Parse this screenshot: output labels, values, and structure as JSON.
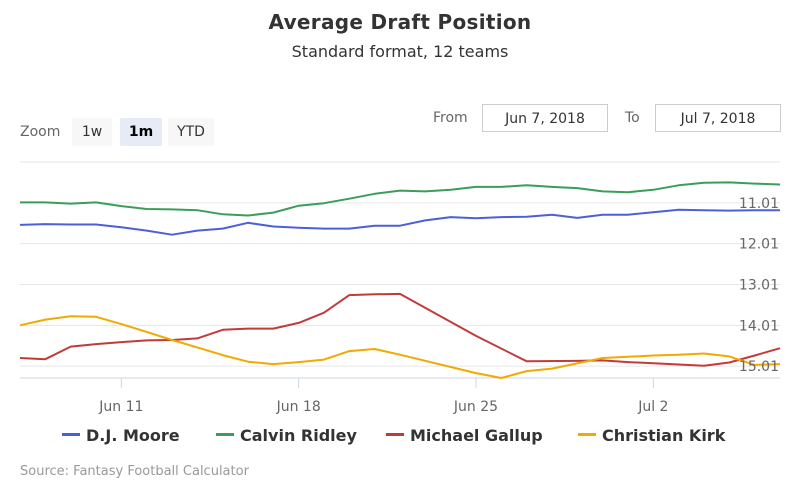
{
  "title": "Average Draft Position",
  "subtitle": "Standard format, 12 teams",
  "zoom": {
    "label": "Zoom",
    "buttons": [
      "1w",
      "1m",
      "YTD"
    ],
    "active": "1m"
  },
  "range": {
    "from_label": "From",
    "from_value": "Jun 7, 2018",
    "to_label": "To",
    "to_value": "Jul 7, 2018"
  },
  "source": "Source: Fantasy Football Calculator",
  "chart_data": {
    "type": "line",
    "x_axis": {
      "type": "date",
      "range": [
        "2018-06-07",
        "2018-07-07"
      ],
      "tick_labels": [
        "Jun 11",
        "Jun 18",
        "Jun 25",
        "Jul 2"
      ]
    },
    "y_axis": {
      "reversed": true,
      "range": [
        10.01,
        15.3
      ],
      "tick_labels": [
        "11.01",
        "12.01",
        "13.01",
        "14.01",
        "15.01"
      ],
      "tick_values": [
        11.01,
        12.01,
        13.01,
        14.01,
        15.01
      ]
    },
    "grid": true,
    "legend_position": "bottom",
    "series": [
      {
        "name": "D.J. Moore",
        "color": "#4c5fdb",
        "points": [
          [
            "2018-06-07",
            11.55
          ],
          [
            "2018-06-08",
            11.53
          ],
          [
            "2018-06-09",
            11.54
          ],
          [
            "2018-06-10",
            11.54
          ],
          [
            "2018-06-11",
            11.61
          ],
          [
            "2018-06-12",
            11.69
          ],
          [
            "2018-06-13",
            11.79
          ],
          [
            "2018-06-14",
            11.69
          ],
          [
            "2018-06-15",
            11.64
          ],
          [
            "2018-06-16",
            11.5
          ],
          [
            "2018-06-17",
            11.59
          ],
          [
            "2018-06-18",
            11.62
          ],
          [
            "2018-06-19",
            11.64
          ],
          [
            "2018-06-20",
            11.64
          ],
          [
            "2018-06-21",
            11.57
          ],
          [
            "2018-06-22",
            11.57
          ],
          [
            "2018-06-23",
            11.44
          ],
          [
            "2018-06-24",
            11.36
          ],
          [
            "2018-06-25",
            11.39
          ],
          [
            "2018-06-26",
            11.36
          ],
          [
            "2018-06-27",
            11.35
          ],
          [
            "2018-06-28",
            11.3
          ],
          [
            "2018-06-29",
            11.38
          ],
          [
            "2018-06-30",
            11.3
          ],
          [
            "2018-07-01",
            11.3
          ],
          [
            "2018-07-02",
            11.24
          ],
          [
            "2018-07-03",
            11.18
          ],
          [
            "2018-07-04",
            11.19
          ],
          [
            "2018-07-05",
            11.2
          ],
          [
            "2018-07-06",
            11.19
          ],
          [
            "2018-07-07",
            11.19
          ]
        ]
      },
      {
        "name": "Calvin Ridley",
        "color": "#3a9e5a",
        "points": [
          [
            "2018-06-07",
            11.0
          ],
          [
            "2018-06-08",
            11.0
          ],
          [
            "2018-06-09",
            11.03
          ],
          [
            "2018-06-10",
            11.0
          ],
          [
            "2018-06-11",
            11.09
          ],
          [
            "2018-06-12",
            11.16
          ],
          [
            "2018-06-13",
            11.17
          ],
          [
            "2018-06-14",
            11.19
          ],
          [
            "2018-06-15",
            11.29
          ],
          [
            "2018-06-16",
            11.32
          ],
          [
            "2018-06-17",
            11.25
          ],
          [
            "2018-06-18",
            11.08
          ],
          [
            "2018-06-19",
            11.02
          ],
          [
            "2018-06-20",
            10.91
          ],
          [
            "2018-06-21",
            10.79
          ],
          [
            "2018-06-22",
            10.71
          ],
          [
            "2018-06-23",
            10.73
          ],
          [
            "2018-06-24",
            10.69
          ],
          [
            "2018-06-25",
            10.62
          ],
          [
            "2018-06-26",
            10.62
          ],
          [
            "2018-06-27",
            10.58
          ],
          [
            "2018-06-28",
            10.62
          ],
          [
            "2018-06-29",
            10.65
          ],
          [
            "2018-06-30",
            10.73
          ],
          [
            "2018-07-01",
            10.75
          ],
          [
            "2018-07-02",
            10.69
          ],
          [
            "2018-07-03",
            10.58
          ],
          [
            "2018-07-04",
            10.52
          ],
          [
            "2018-07-05",
            10.51
          ],
          [
            "2018-07-06",
            10.54
          ],
          [
            "2018-07-07",
            10.56
          ]
        ]
      },
      {
        "name": "Michael Gallup",
        "color": "#c23b3b",
        "points": [
          [
            "2018-06-07",
            14.81
          ],
          [
            "2018-06-08",
            14.84
          ],
          [
            "2018-06-09",
            14.53
          ],
          [
            "2018-06-10",
            14.47
          ],
          [
            "2018-06-11",
            14.42
          ],
          [
            "2018-06-12",
            14.38
          ],
          [
            "2018-06-13",
            14.37
          ],
          [
            "2018-06-14",
            14.33
          ],
          [
            "2018-06-15",
            14.12
          ],
          [
            "2018-06-16",
            14.09
          ],
          [
            "2018-06-17",
            14.09
          ],
          [
            "2018-06-18",
            13.95
          ],
          [
            "2018-06-19",
            13.7
          ],
          [
            "2018-06-20",
            13.27
          ],
          [
            "2018-06-21",
            13.25
          ],
          [
            "2018-06-22",
            13.24
          ],
          [
            "2018-06-25",
            14.27
          ],
          [
            "2018-06-27",
            14.89
          ],
          [
            "2018-06-29",
            14.88
          ],
          [
            "2018-06-30",
            14.87
          ],
          [
            "2018-07-01",
            14.91
          ],
          [
            "2018-07-02",
            14.94
          ],
          [
            "2018-07-03",
            14.97
          ],
          [
            "2018-07-04",
            15.0
          ],
          [
            "2018-07-05",
            14.92
          ],
          [
            "2018-07-06",
            14.75
          ],
          [
            "2018-07-07",
            14.57
          ]
        ]
      },
      {
        "name": "Christian Kirk",
        "color": "#f2a900",
        "points": [
          [
            "2018-06-07",
            14.01
          ],
          [
            "2018-06-08",
            13.87
          ],
          [
            "2018-06-09",
            13.79
          ],
          [
            "2018-06-10",
            13.8
          ],
          [
            "2018-06-11",
            13.98
          ],
          [
            "2018-06-12",
            14.17
          ],
          [
            "2018-06-13",
            14.37
          ],
          [
            "2018-06-14",
            14.55
          ],
          [
            "2018-06-15",
            14.74
          ],
          [
            "2018-06-16",
            14.9
          ],
          [
            "2018-06-17",
            14.96
          ],
          [
            "2018-06-18",
            14.91
          ],
          [
            "2018-06-19",
            14.85
          ],
          [
            "2018-06-20",
            14.64
          ],
          [
            "2018-06-21",
            14.59
          ],
          [
            "2018-06-22",
            14.73
          ],
          [
            "2018-06-25",
            15.18
          ],
          [
            "2018-06-26",
            15.3
          ],
          [
            "2018-06-27",
            15.13
          ],
          [
            "2018-06-28",
            15.07
          ],
          [
            "2018-06-30",
            14.81
          ],
          [
            "2018-07-01",
            14.78
          ],
          [
            "2018-07-02",
            14.75
          ],
          [
            "2018-07-03",
            14.73
          ],
          [
            "2018-07-04",
            14.7
          ],
          [
            "2018-07-05",
            14.77
          ],
          [
            "2018-07-06",
            14.98
          ],
          [
            "2018-07-07",
            14.96
          ]
        ]
      }
    ]
  }
}
